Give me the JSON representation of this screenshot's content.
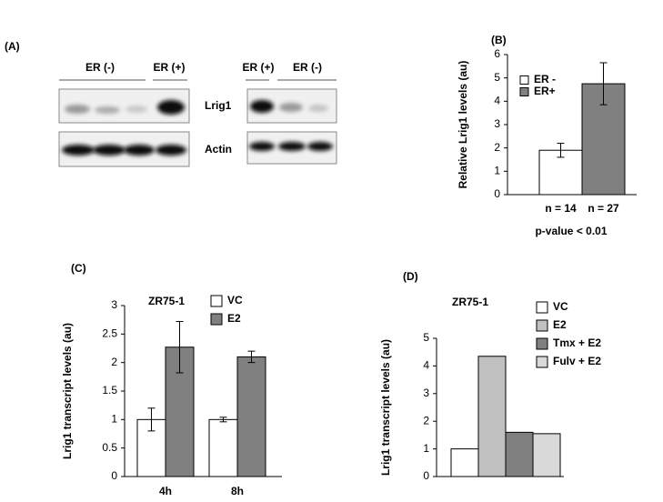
{
  "panel_labels": [
    "(A)",
    "(B)",
    "(C)",
    "(D)"
  ],
  "blot": {
    "left_group_labels": [
      "ER (-)",
      "ER (+)"
    ],
    "right_group_labels": [
      "ER (+)",
      "ER (-)"
    ],
    "row_labels": [
      "Lrig1",
      "Actin"
    ]
  },
  "chart_data": [
    {
      "type": "bar",
      "y_label": "Relative Lrig1 levels (au)",
      "annotation": "p-value < 0.01",
      "categories": [
        "n = 14",
        "n = 27"
      ],
      "series": [
        {
          "name": "ER -",
          "color": "#ffffff",
          "values": [
            1.9,
            null
          ],
          "errors": [
            0.3,
            null
          ]
        },
        {
          "name": "ER+",
          "color": "#808080",
          "values": [
            null,
            4.75
          ],
          "errors": [
            null,
            0.9
          ]
        }
      ],
      "ylim": [
        0,
        6
      ],
      "yticks": [
        0,
        1,
        2,
        3,
        4,
        5,
        6
      ]
    },
    {
      "type": "bar",
      "title": "ZR75-1",
      "y_label": "Lrig1 transcript levels (au)",
      "categories": [
        "4h",
        "8h"
      ],
      "series": [
        {
          "name": "VC",
          "color": "#ffffff",
          "values": [
            1,
            1
          ],
          "errors": [
            0.2,
            0.04
          ]
        },
        {
          "name": "E2",
          "color": "#808080",
          "values": [
            2.27,
            2.1
          ],
          "errors": [
            0.45,
            0.1
          ]
        }
      ],
      "ylim": [
        0,
        3
      ],
      "yticks": [
        0,
        0.5,
        1,
        1.5,
        2,
        2.5,
        3
      ]
    },
    {
      "type": "bar",
      "title": "ZR75-1",
      "y_label": "Lrig1 transcript levels (au)",
      "categories": [
        null
      ],
      "series": [
        {
          "name": "VC",
          "color": "#ffffff",
          "values": [
            1
          ]
        },
        {
          "name": "E2",
          "color": "#c0c0c0",
          "values": [
            4.35
          ]
        },
        {
          "name": "Tmx + E2",
          "color": "#808080",
          "values": [
            1.6
          ]
        },
        {
          "name": "Fulv + E2",
          "color": "#d9d9d9",
          "values": [
            1.55
          ]
        }
      ],
      "ylim": [
        0,
        5
      ],
      "yticks": [
        0,
        1,
        2,
        3,
        4,
        5
      ]
    }
  ]
}
